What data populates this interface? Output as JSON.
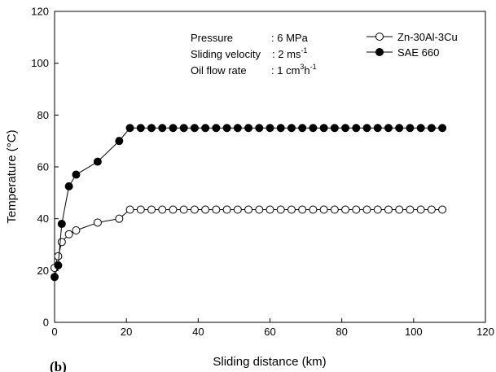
{
  "chart_data": {
    "type": "line",
    "title": "",
    "xlabel": "Sliding distance (km)",
    "ylabel": "Temperature (°C)",
    "xlim": [
      0,
      120
    ],
    "ylim": [
      0,
      120
    ],
    "xticks": [
      "0",
      "20",
      "40",
      "60",
      "80",
      "100",
      "120"
    ],
    "yticks": [
      "0",
      "20",
      "40",
      "60",
      "80",
      "100",
      "120"
    ],
    "grid": false,
    "legend_position": "top-right",
    "panel_label": "(b)",
    "annotation": {
      "pressure_label": "Pressure",
      "pressure_value": ": 6 MPa",
      "velocity_label": "Sliding velocity",
      "velocity_value": ": 2 ms",
      "velocity_sup": "-1",
      "flow_label": "Oil flow rate",
      "flow_value": ": 1 cm",
      "flow_sup1": "3",
      "flow_mid": "h",
      "flow_sup2": "-1"
    },
    "series": [
      {
        "name": "Zn-30Al-3Cu",
        "marker": "open-circle",
        "color": "#000000",
        "x": [
          0,
          1,
          2,
          4,
          6,
          12,
          18,
          21,
          24,
          27,
          30,
          33,
          36,
          39,
          42,
          45,
          48,
          51,
          54,
          57,
          60,
          63,
          66,
          69,
          72,
          75,
          78,
          81,
          84,
          87,
          90,
          93,
          96,
          99,
          102,
          105,
          108
        ],
        "y": [
          21,
          25.5,
          31,
          34,
          35.5,
          38.5,
          40,
          43.5,
          43.5,
          43.5,
          43.5,
          43.5,
          43.5,
          43.5,
          43.5,
          43.5,
          43.5,
          43.5,
          43.5,
          43.5,
          43.5,
          43.5,
          43.5,
          43.5,
          43.5,
          43.5,
          43.5,
          43.5,
          43.5,
          43.5,
          43.5,
          43.5,
          43.5,
          43.5,
          43.5,
          43.5,
          43.5
        ]
      },
      {
        "name": "SAE 660",
        "marker": "filled-circle",
        "color": "#000000",
        "x": [
          0,
          1,
          2,
          4,
          6,
          12,
          18,
          21,
          24,
          27,
          30,
          33,
          36,
          39,
          42,
          45,
          48,
          51,
          54,
          57,
          60,
          63,
          66,
          69,
          72,
          75,
          78,
          81,
          84,
          87,
          90,
          93,
          96,
          99,
          102,
          105,
          108
        ],
        "y": [
          17.5,
          22,
          38,
          52.5,
          57,
          62,
          70,
          75,
          75,
          75,
          75,
          75,
          75,
          75,
          75,
          75,
          75,
          75,
          75,
          75,
          75,
          75,
          75,
          75,
          75,
          75,
          75,
          75,
          75,
          75,
          75,
          75,
          75,
          75,
          75,
          75,
          75
        ]
      }
    ]
  }
}
